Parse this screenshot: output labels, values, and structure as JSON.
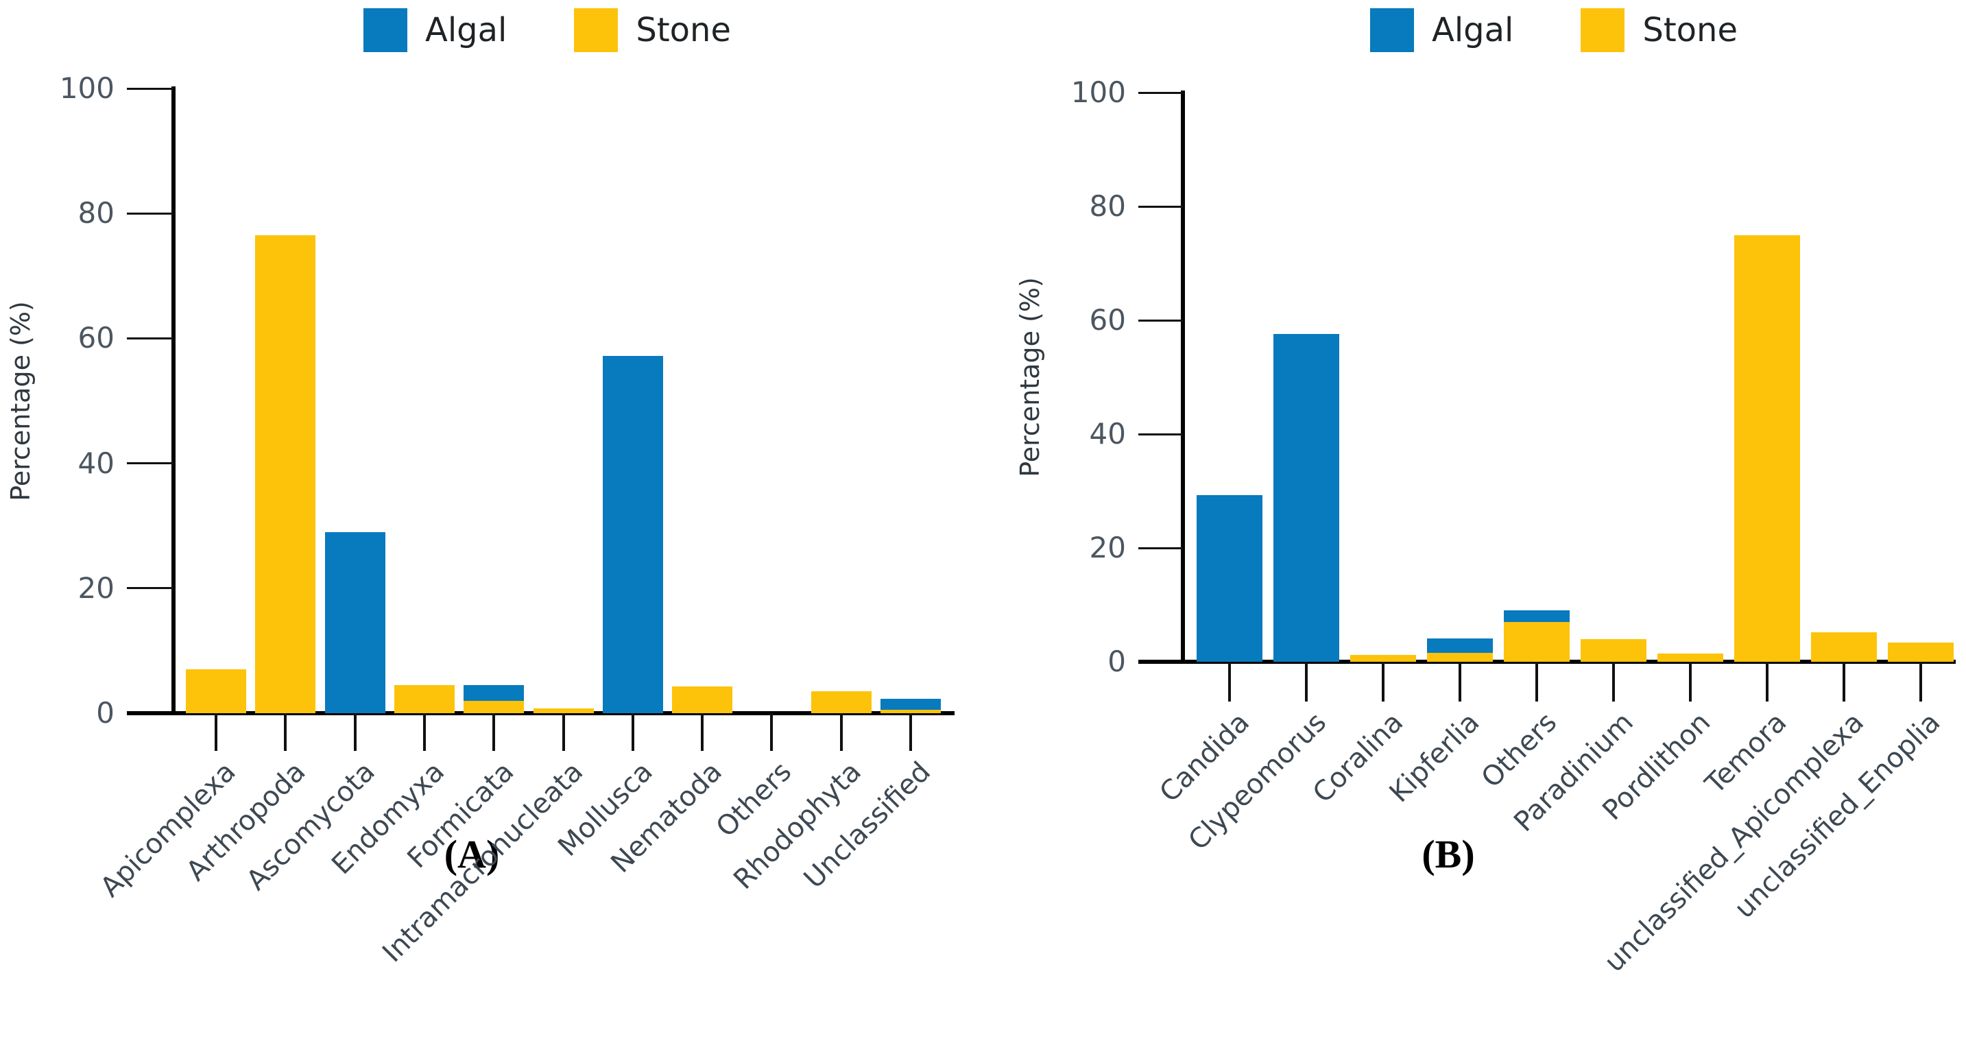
{
  "figure": {
    "background": "#ffffff"
  },
  "colors": {
    "algal": "#087abe",
    "stone": "#fdc30b",
    "axis": "#000000",
    "tick_label": "#4c5660"
  },
  "legend": {
    "items": [
      {
        "label": "Algal",
        "color": "#087abe"
      },
      {
        "label": "Stone",
        "color": "#fdc30b"
      }
    ]
  },
  "chart_data": [
    {
      "type": "bar",
      "panel": "A",
      "caption": "(A)",
      "title": "",
      "xlabel": "",
      "ylabel": "Percentage (%)",
      "ylim": [
        0,
        100
      ],
      "yticks": [
        0,
        20,
        40,
        60,
        80,
        100
      ],
      "grid": false,
      "legend_position": "top",
      "categories": [
        "Apicomplexa",
        "Arthropoda",
        "Ascomycota",
        "Endomyxa",
        "Formicata",
        "Intramacronucleata",
        "Mollusca",
        "Nematoda",
        "Others",
        "Rhodophyta",
        "Unclassified"
      ],
      "series": [
        {
          "name": "Algal",
          "color": "#087abe",
          "values": [
            0,
            0,
            29,
            0,
            4.5,
            0,
            57.2,
            0,
            0,
            0,
            2.3
          ]
        },
        {
          "name": "Stone",
          "color": "#fdc30b",
          "values": [
            7,
            76.5,
            0,
            4.5,
            2,
            0.8,
            0,
            4.3,
            0,
            3.5,
            0.5
          ]
        }
      ]
    },
    {
      "type": "bar",
      "panel": "B",
      "caption": "(B)",
      "title": "",
      "xlabel": "",
      "ylabel": "Percentage (%)",
      "ylim": [
        0,
        100
      ],
      "yticks": [
        0,
        20,
        40,
        60,
        80,
        100
      ],
      "grid": false,
      "legend_position": "top",
      "categories": [
        "Candida",
        "Clypeomorus",
        "Coralina",
        "Kipferlia",
        "Others",
        "Paradinium",
        "Pordlithon",
        "Temora",
        "unclassified_Apicomplexa",
        "unclassified_Enoplia"
      ],
      "series": [
        {
          "name": "Algal",
          "color": "#087abe",
          "values": [
            29.3,
            57.6,
            0,
            4.1,
            9,
            0,
            0,
            0,
            0,
            0
          ]
        },
        {
          "name": "Stone",
          "color": "#fdc30b",
          "values": [
            0,
            0,
            1.2,
            1.6,
            7,
            4,
            1.4,
            74.9,
            5.2,
            3.4
          ]
        }
      ]
    }
  ]
}
